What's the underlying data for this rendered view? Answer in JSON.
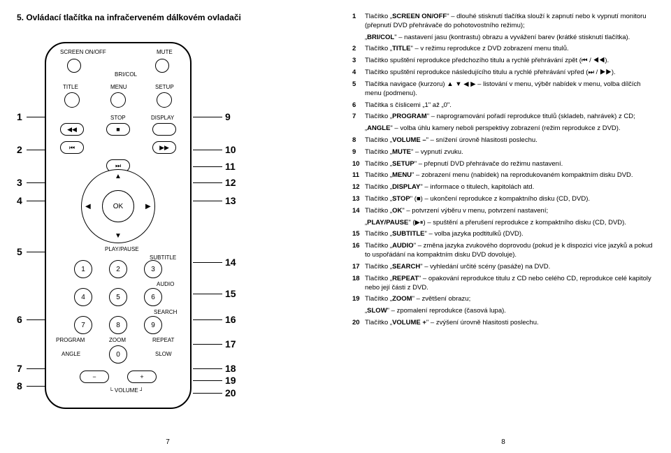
{
  "title": "5. Ovládací tlačítka na infračerveném dálkovém ovladači",
  "page_left_num": "7",
  "page_right_num": "8",
  "remote_labels": {
    "screen": "SCREEN ON/OFF",
    "mute": "MUTE",
    "bri": "BRI/COL",
    "title_b": "TITLE",
    "menu_b": "MENU",
    "setup_b": "SETUP",
    "stop": "STOP",
    "display": "DISPLAY",
    "ok": "OK",
    "play": "PLAY/PAUSE",
    "subtitle": "SUBTITLE",
    "audio": "AUDIO",
    "search": "SEARCH",
    "program": "PROGRAM",
    "zoom": "ZOOM",
    "repeat": "REPEAT",
    "angle": "ANGLE",
    "slow": "SLOW",
    "volume": "VOLUME"
  },
  "left_nums": [
    "1",
    "2",
    "3",
    "4",
    "5",
    "6",
    "7",
    "8"
  ],
  "right_nums": [
    "9",
    "10",
    "11",
    "12",
    "13",
    "14",
    "15",
    "16",
    "17",
    "18",
    "19",
    "20"
  ],
  "left_pos": [
    125,
    172,
    219,
    245,
    318,
    415,
    485,
    510
  ],
  "right_pos": [
    125,
    172,
    196,
    219,
    245,
    333,
    378,
    415,
    450,
    485,
    502,
    520
  ],
  "items": [
    {
      "n": "1",
      "strong": "SCREEN ON/OFF",
      "t": " – dlouhé stisknutí tlačítka slouží k zapnutí nebo k vypnutí monitoru (přepnutí DVD přehrávače do pohotovostního režimu);",
      "sub": "„<b>BRI/COL</b>\" – nastavení jasu (kontrastu) obrazu a vyvážení barev (krátké stisknutí tlačítka)."
    },
    {
      "n": "2",
      "strong": "TITLE",
      "t": " – v režimu reprodukce z DVD zobrazení menu titulů."
    },
    {
      "n": "3",
      "t": "Tlačítko spuštění reprodukce předchozího titulu a rychlé přehrávání zpět (⏮ / ◀◀)."
    },
    {
      "n": "4",
      "t": "Tlačítko spuštění reprodukce následujícího titulu a rychlé přehrávání vpřed (⏭ / ▶▶)."
    },
    {
      "n": "5",
      "t": "Tlačítka navigace (kurzoru) ▲ ▼ ◀ ▶ – listování v menu, výběr nabídek v menu, volba dílčích menu (podmenu)."
    },
    {
      "n": "6",
      "t": "Tlačítka s číslicemi „1\" až „0\"."
    },
    {
      "n": "7",
      "strong": "PROGRAM",
      "t": " – naprogramování pořadí reprodukce titulů (skladeb, nahrávek) z CD;",
      "sub": "„<b>ANGLE</b>\" – volba úhlu kamery neboli perspektivy zobrazení (režim reprodukce z DVD)."
    },
    {
      "n": "8",
      "strong": "VOLUME –",
      "t": " – snížení úrovně hlasitosti poslechu."
    },
    {
      "n": "9",
      "strong": "MUTE",
      "t": " – vypnutí zvuku."
    },
    {
      "n": "10",
      "strong": "SETUP",
      "t": " – přepnutí DVD přehrávače do režimu nastavení."
    },
    {
      "n": "11",
      "strong": "MENU",
      "t": " – zobrazení menu (nabídek) na reprodukovaném kompaktním disku DVD."
    },
    {
      "n": "12",
      "strong": "DISPLAY",
      "t": " – informace o titulech, kapitolách atd."
    },
    {
      "n": "13",
      "strong": "STOP",
      "t": " (■) – ukončení reprodukce z kompaktního disku (CD, DVD)."
    },
    {
      "n": "14",
      "strong": "OK",
      "t": " – potvrzení výběru v menu, potvrzení nastavení;",
      "sub": "„<b>PLAY/PAUSE</b>\" (▶⏸) – spuštění a přerušení reprodukce z kompaktního disku (CD, DVD)."
    },
    {
      "n": "15",
      "strong": "SUBTITLE",
      "t": " – volba jazyka podtitulků (DVD)."
    },
    {
      "n": "16",
      "strong": "AUDIO",
      "t": " – změna jazyka zvukového doprovodu (pokud je k dispozici více jazyků a pokud to uspořádání na kompaktním disku DVD dovoluje)."
    },
    {
      "n": "17",
      "strong": "SEARCH",
      "t": " – vyhledání určité scény (pasáže) na DVD."
    },
    {
      "n": "18",
      "strong": "REPEAT",
      "t": " – opakování reprodukce titulu z CD nebo celého CD, reprodukce celé kapitoly nebo její části z DVD."
    },
    {
      "n": "19",
      "strong": "ZOOM",
      "t": " – zvětšení obrazu;",
      "sub": "„<b>SLOW</b>\" – zpomalení reprodukce (časová lupa)."
    },
    {
      "n": "20",
      "strong": "VOLUME +",
      "t": " – zvýšení úrovně hlasitosti poslechu."
    }
  ]
}
